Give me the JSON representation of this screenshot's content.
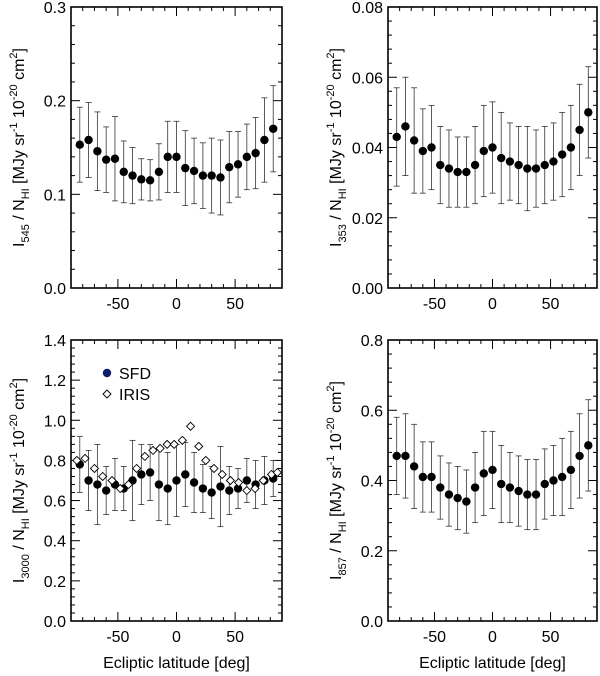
{
  "chart_data": [
    {
      "type": "scatter",
      "panel": "top-left",
      "ylabel": {
        "main": "I",
        "sub": "545",
        "rest": " / N",
        "rest_sub": "HI",
        "units": " [MJy sr",
        "units_sup": "-1",
        "units2": " 10",
        "units2_sup": "-20",
        "units3": " cm",
        "units3_sup": "2",
        "units4": "]"
      },
      "xlabel": "",
      "xlim": [
        -90,
        90
      ],
      "ylim": [
        0.0,
        0.3
      ],
      "xticks": [
        -50,
        0,
        50
      ],
      "xtick_labels": [
        "-50",
        "0",
        "50"
      ],
      "yticks": [
        0.0,
        0.1,
        0.2,
        0.3
      ],
      "ytick_labels": [
        "0.0",
        "0.1",
        "0.2",
        "0.3"
      ],
      "series": [
        {
          "name": "data",
          "marker": "filled-circle",
          "x": [
            -82.5,
            -75,
            -67.5,
            -60,
            -52.5,
            -45,
            -37.5,
            -30,
            -22.5,
            -15,
            -7.5,
            0,
            7.5,
            15,
            22.5,
            30,
            37.5,
            45,
            52.5,
            60,
            67.5,
            75,
            82.5
          ],
          "y": [
            0.153,
            0.158,
            0.146,
            0.137,
            0.138,
            0.124,
            0.12,
            0.116,
            0.115,
            0.124,
            0.14,
            0.14,
            0.128,
            0.125,
            0.12,
            0.12,
            0.118,
            0.129,
            0.132,
            0.14,
            0.144,
            0.158,
            0.17
          ],
          "err": [
            0.04,
            0.04,
            0.042,
            0.035,
            0.045,
            0.033,
            0.03,
            0.022,
            0.022,
            0.03,
            0.038,
            0.038,
            0.04,
            0.035,
            0.035,
            0.04,
            0.04,
            0.038,
            0.035,
            0.035,
            0.038,
            0.045,
            0.046
          ]
        }
      ]
    },
    {
      "type": "scatter",
      "panel": "top-right",
      "ylabel": {
        "main": "I",
        "sub": "353",
        "rest": " / N",
        "rest_sub": "HI",
        "units": " [MJy sr",
        "units_sup": "-1",
        "units2": " 10",
        "units2_sup": "-20",
        "units3": " cm",
        "units3_sup": "2",
        "units4": "]"
      },
      "xlabel": "",
      "xlim": [
        -90,
        90
      ],
      "ylim": [
        0.0,
        0.08
      ],
      "xticks": [
        -50,
        0,
        50
      ],
      "xtick_labels": [
        "-50",
        "0",
        "50"
      ],
      "yticks": [
        0.0,
        0.02,
        0.04,
        0.06,
        0.08
      ],
      "ytick_labels": [
        "0.00",
        "0.02",
        "0.04",
        "0.06",
        "0.08"
      ],
      "series": [
        {
          "name": "data",
          "marker": "filled-circle",
          "x": [
            -82.5,
            -75,
            -67.5,
            -60,
            -52.5,
            -45,
            -37.5,
            -30,
            -22.5,
            -15,
            -7.5,
            0,
            7.5,
            15,
            22.5,
            30,
            37.5,
            45,
            52.5,
            60,
            67.5,
            75,
            82.5
          ],
          "y": [
            0.043,
            0.046,
            0.042,
            0.039,
            0.04,
            0.035,
            0.034,
            0.033,
            0.033,
            0.035,
            0.039,
            0.04,
            0.037,
            0.036,
            0.035,
            0.034,
            0.034,
            0.035,
            0.036,
            0.038,
            0.04,
            0.045,
            0.05
          ],
          "err": [
            0.014,
            0.014,
            0.015,
            0.012,
            0.012,
            0.011,
            0.011,
            0.01,
            0.01,
            0.011,
            0.013,
            0.013,
            0.013,
            0.011,
            0.011,
            0.012,
            0.011,
            0.011,
            0.011,
            0.012,
            0.012,
            0.013,
            0.013
          ]
        }
      ]
    },
    {
      "type": "scatter",
      "panel": "bottom-left",
      "ylabel": {
        "main": "I",
        "sub": "3000",
        "rest": " / N",
        "rest_sub": "HI",
        "units": " [MJy sr",
        "units_sup": "-1",
        "units2": " 10",
        "units2_sup": "-20",
        "units3": " cm",
        "units3_sup": "2",
        "units4": "]"
      },
      "xlabel": "Ecliptic latitude [deg]",
      "xlim": [
        -90,
        90
      ],
      "ylim": [
        0.0,
        1.4
      ],
      "xticks": [
        -50,
        0,
        50
      ],
      "xtick_labels": [
        "-50",
        "0",
        "50"
      ],
      "yticks": [
        0.0,
        0.2,
        0.4,
        0.6,
        0.8,
        1.0,
        1.2,
        1.4
      ],
      "ytick_labels": [
        "0.0",
        "0.2",
        "0.4",
        "0.6",
        "0.8",
        "1.0",
        "1.2",
        "1.4"
      ],
      "legend": {
        "position": "top-left",
        "entries": [
          {
            "label": "SFD",
            "marker": "filled-circle",
            "color": "#0b1c6b"
          },
          {
            "label": "IRIS",
            "marker": "open-diamond",
            "color": "#000000"
          }
        ]
      },
      "series": [
        {
          "name": "SFD",
          "marker": "filled-circle",
          "x": [
            -82.5,
            -75,
            -67.5,
            -60,
            -52.5,
            -45,
            -37.5,
            -30,
            -22.5,
            -15,
            -7.5,
            0,
            7.5,
            15,
            22.5,
            30,
            37.5,
            45,
            52.5,
            60,
            67.5,
            75,
            82.5
          ],
          "y": [
            0.78,
            0.7,
            0.68,
            0.65,
            0.68,
            0.66,
            0.7,
            0.73,
            0.74,
            0.68,
            0.66,
            0.7,
            0.73,
            0.69,
            0.66,
            0.64,
            0.67,
            0.65,
            0.66,
            0.7,
            0.68,
            0.7,
            0.71
          ],
          "err": [
            0.14,
            0.15,
            0.2,
            0.12,
            0.13,
            0.11,
            0.2,
            0.15,
            0.14,
            0.18,
            0.18,
            0.18,
            0.16,
            0.15,
            0.12,
            0.13,
            0.2,
            0.12,
            0.1,
            0.11,
            0.12,
            0.12,
            0.09
          ]
        },
        {
          "name": "IRIS",
          "marker": "open-diamond",
          "x": [
            -85,
            -78,
            -70,
            -63,
            -55,
            -48,
            -41,
            -34,
            -27,
            -20,
            -14,
            -8,
            -2,
            5,
            12,
            19,
            25,
            32,
            39,
            46,
            53,
            60,
            67,
            74,
            81,
            86
          ],
          "y": [
            0.8,
            0.81,
            0.76,
            0.72,
            0.7,
            0.66,
            0.68,
            0.76,
            0.82,
            0.85,
            0.86,
            0.88,
            0.88,
            0.9,
            0.97,
            0.87,
            0.8,
            0.76,
            0.73,
            0.7,
            0.69,
            0.65,
            0.66,
            0.7,
            0.73,
            0.74
          ],
          "err": []
        }
      ]
    },
    {
      "type": "scatter",
      "panel": "bottom-right",
      "ylabel": {
        "main": "I",
        "sub": "857",
        "rest": " / N",
        "rest_sub": "HI",
        "units": " [MJy sr",
        "units_sup": "-1",
        "units2": " 10",
        "units2_sup": "-20",
        "units3": " cm",
        "units3_sup": "2",
        "units4": "]"
      },
      "xlabel": "Ecliptic latitude [deg]",
      "xlim": [
        -90,
        90
      ],
      "ylim": [
        0.0,
        0.8
      ],
      "xticks": [
        -50,
        0,
        50
      ],
      "xtick_labels": [
        "-50",
        "0",
        "50"
      ],
      "yticks": [
        0.0,
        0.2,
        0.4,
        0.6,
        0.8
      ],
      "ytick_labels": [
        "0.0",
        "0.2",
        "0.4",
        "0.6",
        "0.8"
      ],
      "series": [
        {
          "name": "data",
          "marker": "filled-circle",
          "x": [
            -82.5,
            -75,
            -67.5,
            -60,
            -52.5,
            -45,
            -37.5,
            -30,
            -22.5,
            -15,
            -7.5,
            0,
            7.5,
            15,
            22.5,
            30,
            37.5,
            45,
            52.5,
            60,
            67.5,
            75,
            82.5
          ],
          "y": [
            0.47,
            0.47,
            0.44,
            0.41,
            0.41,
            0.38,
            0.36,
            0.35,
            0.34,
            0.38,
            0.42,
            0.43,
            0.39,
            0.38,
            0.37,
            0.36,
            0.36,
            0.39,
            0.4,
            0.41,
            0.43,
            0.47,
            0.5
          ],
          "err": [
            0.11,
            0.12,
            0.12,
            0.1,
            0.1,
            0.09,
            0.09,
            0.09,
            0.09,
            0.1,
            0.12,
            0.11,
            0.11,
            0.1,
            0.1,
            0.1,
            0.1,
            0.1,
            0.1,
            0.11,
            0.11,
            0.12,
            0.13
          ]
        }
      ]
    }
  ]
}
